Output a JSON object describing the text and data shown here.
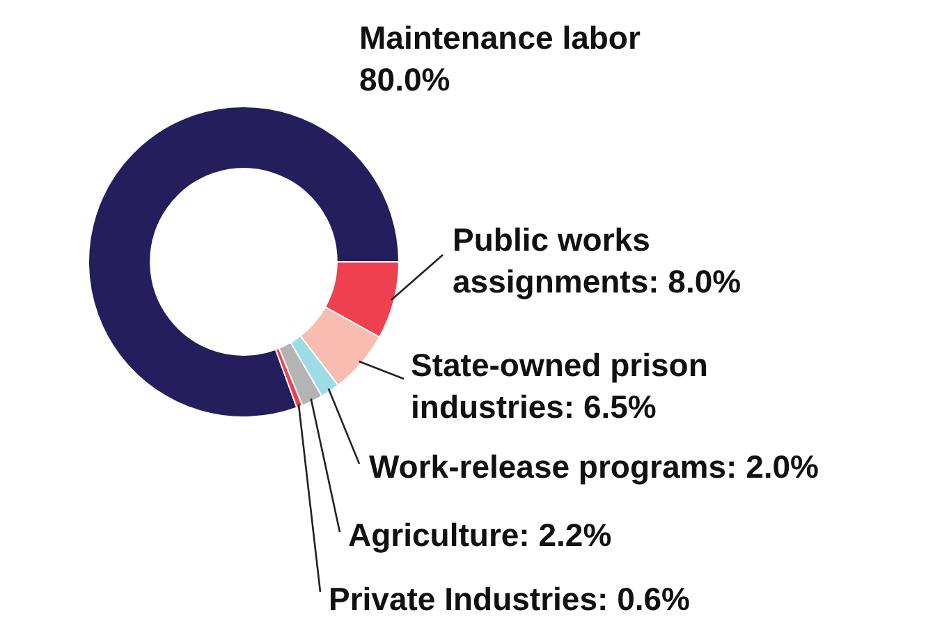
{
  "chart_data": {
    "type": "donut",
    "categories": [
      "Maintenance labor",
      "Public works assignments",
      "State-owned prison industries",
      "Work-release programs",
      "Agriculture",
      "Private Industries"
    ],
    "values": [
      80.0,
      8.0,
      6.5,
      2.0,
      2.2,
      0.6
    ],
    "value_labels": [
      "80.0%",
      "8.0%",
      "6.5%",
      "2.0%",
      "2.2%",
      "0.6%"
    ],
    "colors": [
      "#241f5c",
      "#ef4050",
      "#f9bcb0",
      "#9ddbe6",
      "#b4b4b4",
      "#ef4050"
    ],
    "legend": false
  }
}
